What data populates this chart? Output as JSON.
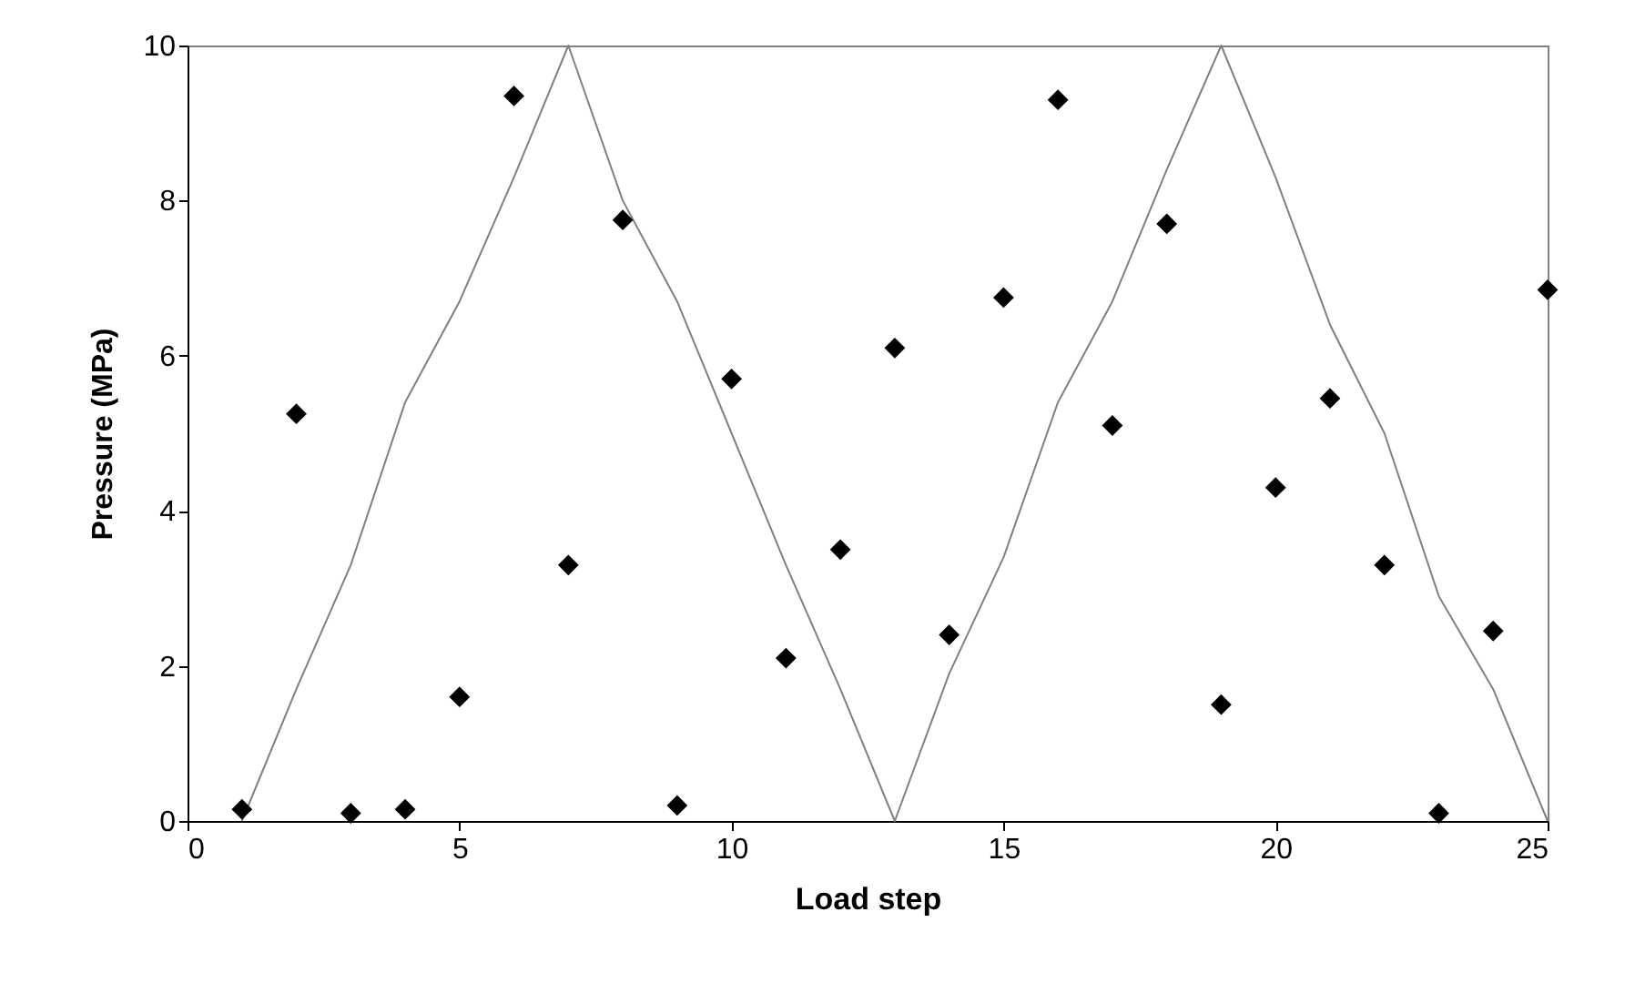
{
  "chart_data": {
    "type": "scatter",
    "xlabel": "Load step",
    "ylabel": "Pressure (MPa)",
    "xlim": [
      0,
      25
    ],
    "xticks": [
      0,
      5,
      10,
      15,
      20,
      25
    ],
    "ylim": [
      0,
      10
    ],
    "yticks": [
      0,
      2,
      4,
      6,
      8,
      10
    ],
    "grid": false,
    "x": [
      1,
      2,
      3,
      4,
      5,
      6,
      7,
      8,
      9,
      10,
      11,
      12,
      13,
      14,
      15,
      16,
      17,
      18,
      19,
      20,
      21,
      22,
      23,
      24,
      25
    ],
    "series": [
      {
        "type": "line",
        "color": "#808080",
        "marker": "none",
        "line_style": "solid",
        "values": [
          0,
          1.7,
          3.3,
          5.4,
          6.7,
          8.3,
          10,
          8.0,
          6.7,
          5.0,
          3.3,
          1.7,
          0,
          1.9,
          3.4,
          5.4,
          6.7,
          8.4,
          10,
          8.3,
          6.4,
          5.0,
          2.9,
          1.7,
          0
        ]
      },
      {
        "color": "#000000",
        "marker": "diamond",
        "values": [
          0.15,
          5.25,
          0.1,
          0.15,
          1.6,
          9.35,
          3.3,
          7.75,
          0.2,
          5.7,
          2.1,
          3.5,
          6.1,
          2.4,
          6.75,
          9.3,
          5.1,
          7.7,
          1.5,
          4.3,
          5.45,
          3.3,
          0.1,
          2.45,
          6.85
        ]
      }
    ]
  }
}
